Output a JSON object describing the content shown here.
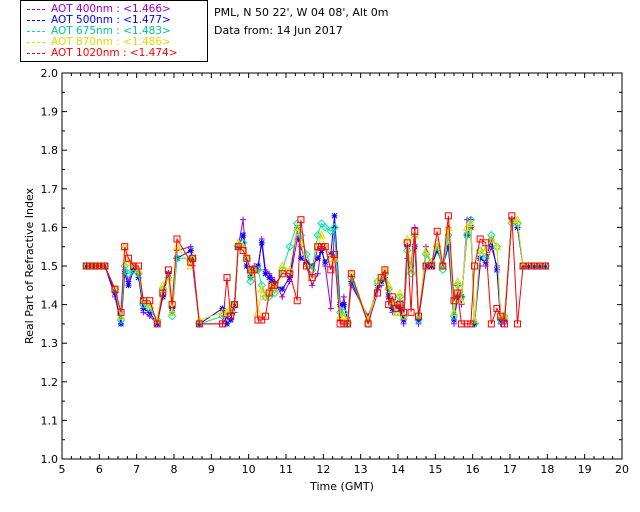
{
  "info": {
    "site": "PML, N 50 22', W 04 08', Alt 0m",
    "date": "Data from: 14 Jun 2017"
  },
  "legend": [
    {
      "label": "AOT  400nm : <1.466>",
      "color": "#9900cc"
    },
    {
      "label": "AOT  500nm : <1.477>",
      "color": "#0000ff"
    },
    {
      "label": "AOT  675nm : <1.483>",
      "color": "#00e6a0"
    },
    {
      "label": "AOT  870nm : <1.486>",
      "color": "#e6d800"
    },
    {
      "label": "AOT 1020nm : <1.474>",
      "color": "#ff0000"
    }
  ],
  "chart_data": {
    "type": "line",
    "xlabel": "Time (GMT)",
    "ylabel": "Real Part of Refractive Index",
    "xlim": [
      5,
      20
    ],
    "ylim": [
      1.0,
      2.0
    ],
    "xticks": [
      5,
      6,
      7,
      8,
      9,
      10,
      11,
      12,
      13,
      14,
      15,
      16,
      17,
      18,
      19,
      20
    ],
    "yticks": [
      1.0,
      1.1,
      1.2,
      1.3,
      1.4,
      1.5,
      1.6,
      1.7,
      1.8,
      1.9,
      2.0
    ],
    "x": [
      5.65,
      5.75,
      5.85,
      5.95,
      6.05,
      6.15,
      6.42,
      6.58,
      6.68,
      6.78,
      6.92,
      7.05,
      7.18,
      7.35,
      7.55,
      7.7,
      7.85,
      7.95,
      8.08,
      8.45,
      8.5,
      8.68,
      9.3,
      9.42,
      9.52,
      9.62,
      9.72,
      9.85,
      9.95,
      10.05,
      10.15,
      10.25,
      10.35,
      10.45,
      10.55,
      10.62,
      10.7,
      10.9,
      11.1,
      11.3,
      11.4,
      11.55,
      11.7,
      11.85,
      11.95,
      12.05,
      12.2,
      12.3,
      12.45,
      12.55,
      12.65,
      12.75,
      13.2,
      13.45,
      13.55,
      13.65,
      13.75,
      13.85,
      13.95,
      14.05,
      14.15,
      14.25,
      14.35,
      14.45,
      14.55,
      14.75,
      14.9,
      15.05,
      15.2,
      15.35,
      15.5,
      15.6,
      15.7,
      15.85,
      15.95,
      16.05,
      16.2,
      16.35,
      16.5,
      16.65,
      16.75,
      16.85,
      17.05,
      17.2,
      17.35,
      17.5,
      17.65,
      17.8,
      17.95
    ],
    "series": [
      {
        "name": "AOT  400nm : <1.466>",
        "color": "#9900cc",
        "marker": "plus",
        "values": [
          1.5,
          1.5,
          1.5,
          1.5,
          1.5,
          1.5,
          1.42,
          1.35,
          1.49,
          1.46,
          1.5,
          1.48,
          1.38,
          1.37,
          1.35,
          1.43,
          1.48,
          1.38,
          1.54,
          1.55,
          1.5,
          1.35,
          1.35,
          1.37,
          1.38,
          1.38,
          1.55,
          1.62,
          1.5,
          1.48,
          1.5,
          1.49,
          1.57,
          1.49,
          1.48,
          1.47,
          1.46,
          1.42,
          1.46,
          1.57,
          1.55,
          1.5,
          1.45,
          1.48,
          1.55,
          1.5,
          1.39,
          1.6,
          1.36,
          1.42,
          1.35,
          1.45,
          1.37,
          1.44,
          1.45,
          1.48,
          1.43,
          1.38,
          1.4,
          1.41,
          1.35,
          1.52,
          1.5,
          1.6,
          1.35,
          1.55,
          1.5,
          1.55,
          1.5,
          1.6,
          1.35,
          1.45,
          1.4,
          1.62,
          1.62,
          1.35,
          1.5,
          1.5,
          1.55,
          1.5,
          1.35,
          1.35,
          1.62,
          1.6,
          1.5,
          1.5,
          1.5,
          1.5,
          1.5
        ]
      },
      {
        "name": "AOT  500nm : <1.477>",
        "color": "#0000ff",
        "marker": "asterisk",
        "values": [
          1.5,
          1.5,
          1.5,
          1.5,
          1.5,
          1.5,
          1.43,
          1.35,
          1.48,
          1.45,
          1.49,
          1.47,
          1.39,
          1.38,
          1.35,
          1.42,
          1.48,
          1.39,
          1.52,
          1.54,
          1.52,
          1.35,
          1.39,
          1.35,
          1.36,
          1.4,
          1.55,
          1.58,
          1.5,
          1.47,
          1.49,
          1.5,
          1.56,
          1.48,
          1.47,
          1.46,
          1.45,
          1.44,
          1.47,
          1.6,
          1.52,
          1.51,
          1.5,
          1.52,
          1.54,
          1.51,
          1.53,
          1.63,
          1.4,
          1.4,
          1.36,
          1.46,
          1.36,
          1.45,
          1.46,
          1.47,
          1.42,
          1.39,
          1.4,
          1.39,
          1.36,
          1.55,
          1.5,
          1.55,
          1.36,
          1.5,
          1.5,
          1.54,
          1.5,
          1.55,
          1.36,
          1.42,
          1.42,
          1.58,
          1.6,
          1.35,
          1.52,
          1.51,
          1.57,
          1.49,
          1.36,
          1.36,
          1.62,
          1.6,
          1.5,
          1.5,
          1.5,
          1.5,
          1.5
        ]
      },
      {
        "name": "AOT  675nm : <1.483>",
        "color": "#00e6a0",
        "marker": "diamond",
        "values": [
          1.5,
          1.5,
          1.5,
          1.5,
          1.5,
          1.5,
          1.44,
          1.36,
          1.5,
          1.48,
          1.49,
          1.48,
          1.4,
          1.39,
          1.36,
          1.44,
          1.47,
          1.37,
          1.52,
          1.52,
          1.52,
          1.35,
          1.37,
          1.38,
          1.38,
          1.4,
          1.55,
          1.56,
          1.52,
          1.46,
          1.49,
          1.49,
          1.45,
          1.42,
          1.42,
          1.44,
          1.43,
          1.49,
          1.55,
          1.61,
          1.58,
          1.53,
          1.49,
          1.58,
          1.61,
          1.6,
          1.59,
          1.6,
          1.38,
          1.38,
          1.35,
          1.47,
          1.35,
          1.46,
          1.46,
          1.48,
          1.44,
          1.4,
          1.38,
          1.42,
          1.37,
          1.54,
          1.48,
          1.58,
          1.36,
          1.53,
          1.51,
          1.55,
          1.49,
          1.58,
          1.37,
          1.45,
          1.42,
          1.58,
          1.62,
          1.35,
          1.54,
          1.52,
          1.58,
          1.55,
          1.36,
          1.37,
          1.61,
          1.61,
          1.5,
          1.5,
          1.5,
          1.5,
          1.5
        ]
      },
      {
        "name": "AOT  870nm : <1.486>",
        "color": "#e6d800",
        "marker": "triangle",
        "values": [
          1.5,
          1.5,
          1.5,
          1.5,
          1.5,
          1.5,
          1.44,
          1.37,
          1.55,
          1.51,
          1.5,
          1.49,
          1.41,
          1.4,
          1.36,
          1.45,
          1.47,
          1.38,
          1.55,
          1.5,
          1.52,
          1.36,
          1.38,
          1.38,
          1.39,
          1.4,
          1.56,
          1.55,
          1.52,
          1.48,
          1.49,
          1.38,
          1.44,
          1.42,
          1.43,
          1.45,
          1.44,
          1.5,
          1.49,
          1.6,
          1.56,
          1.5,
          1.47,
          1.55,
          1.58,
          1.55,
          1.52,
          1.52,
          1.37,
          1.37,
          1.36,
          1.48,
          1.36,
          1.46,
          1.47,
          1.49,
          1.45,
          1.41,
          1.38,
          1.43,
          1.37,
          1.57,
          1.49,
          1.58,
          1.37,
          1.54,
          1.51,
          1.56,
          1.5,
          1.6,
          1.38,
          1.46,
          1.41,
          1.6,
          1.61,
          1.36,
          1.54,
          1.54,
          1.57,
          1.55,
          1.37,
          1.37,
          1.62,
          1.62,
          1.5,
          1.5,
          1.5,
          1.5,
          1.5
        ]
      },
      {
        "name": "AOT 1020nm : <1.474>",
        "color": "#ff0000",
        "marker": "square",
        "values": [
          1.5,
          1.5,
          1.5,
          1.5,
          1.5,
          1.5,
          1.44,
          1.38,
          1.55,
          1.52,
          1.5,
          1.5,
          1.41,
          1.41,
          1.35,
          1.43,
          1.49,
          1.4,
          1.57,
          1.51,
          1.52,
          1.35,
          1.35,
          1.47,
          1.37,
          1.4,
          1.55,
          1.54,
          1.52,
          1.49,
          1.49,
          1.36,
          1.36,
          1.37,
          1.43,
          1.45,
          1.45,
          1.48,
          1.48,
          1.41,
          1.62,
          1.5,
          1.47,
          1.55,
          1.55,
          1.55,
          1.49,
          1.53,
          1.35,
          1.35,
          1.35,
          1.48,
          1.35,
          1.43,
          1.47,
          1.49,
          1.4,
          1.42,
          1.39,
          1.4,
          1.38,
          1.56,
          1.38,
          1.59,
          1.37,
          1.5,
          1.5,
          1.59,
          1.5,
          1.63,
          1.41,
          1.43,
          1.35,
          1.35,
          1.35,
          1.5,
          1.57,
          1.56,
          1.35,
          1.39,
          1.37,
          1.35,
          1.63,
          1.35,
          1.5,
          1.5,
          1.5,
          1.5,
          1.5
        ]
      }
    ]
  }
}
